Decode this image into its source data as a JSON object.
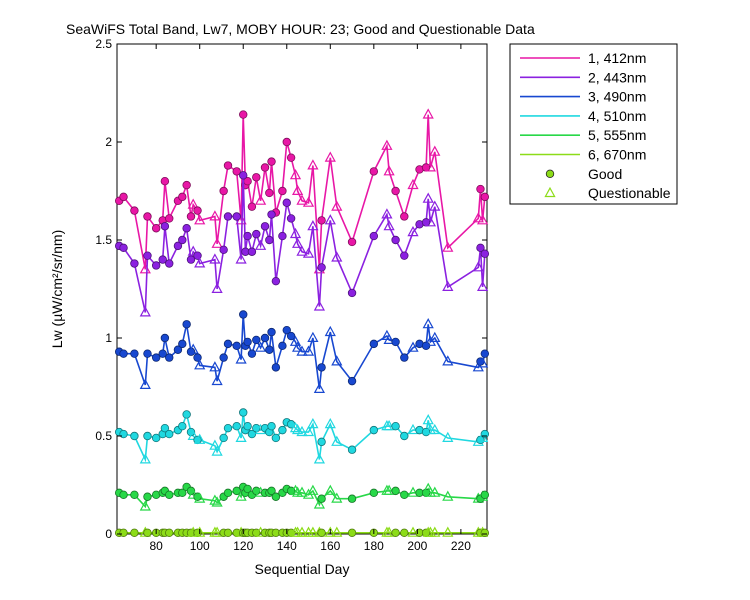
{
  "chart_data": {
    "type": "line",
    "title": "SeaWiFS Total Band,  Lw7, MOBY HOUR: 23;  Good and Questionable Data",
    "xlabel": "Sequential Day",
    "ylabel": "Lw (µW/cm²/sr/nm)",
    "xlim": [
      62,
      232
    ],
    "ylim": [
      0,
      2.5
    ],
    "xticks": [
      80,
      100,
      120,
      140,
      160,
      180,
      200,
      220
    ],
    "yticks": [
      0,
      0.5,
      1,
      1.5,
      2,
      2.5
    ],
    "ytick_labels": [
      "0",
      "0.5",
      "1",
      "1.5",
      "2",
      "2.5"
    ],
    "grid": false,
    "legend_position": "outside-top-right",
    "x": [
      63,
      65,
      70,
      75,
      76,
      80,
      83,
      84,
      86,
      90,
      92,
      94,
      96,
      97,
      99,
      100,
      107,
      108,
      111,
      113,
      117,
      119,
      120,
      121,
      122,
      124,
      126,
      128,
      130,
      132,
      133,
      135,
      138,
      140,
      142,
      144,
      145,
      147,
      150,
      152,
      155,
      156,
      160,
      163,
      170,
      180,
      186,
      187,
      190,
      194,
      198,
      201,
      204,
      205,
      206,
      208,
      214,
      228,
      229,
      230,
      231
    ],
    "series": [
      {
        "name": "1, 412nm",
        "color": "#e817a6",
        "values": [
          1.7,
          1.72,
          1.65,
          1.35,
          1.62,
          1.56,
          1.6,
          1.8,
          1.61,
          1.7,
          1.72,
          1.78,
          1.62,
          1.68,
          1.65,
          1.6,
          1.62,
          1.48,
          1.75,
          1.88,
          1.85,
          1.6,
          2.14,
          1.78,
          1.8,
          1.67,
          1.82,
          1.7,
          1.87,
          1.74,
          1.9,
          1.64,
          1.75,
          2.0,
          1.92,
          1.83,
          1.75,
          1.7,
          1.69,
          1.88,
          1.35,
          1.6,
          1.92,
          1.67,
          1.49,
          1.85,
          1.98,
          1.85,
          1.75,
          1.62,
          1.78,
          1.86,
          1.87,
          2.14,
          1.87,
          1.95,
          1.46,
          1.61,
          1.76,
          1.6,
          1.72
        ]
      },
      {
        "name": "2, 443nm",
        "color": "#8b21e0",
        "values": [
          1.47,
          1.46,
          1.38,
          1.13,
          1.42,
          1.37,
          1.4,
          1.57,
          1.38,
          1.47,
          1.5,
          1.56,
          1.4,
          1.44,
          1.42,
          1.38,
          1.4,
          1.25,
          1.45,
          1.62,
          1.62,
          1.4,
          1.83,
          1.44,
          1.52,
          1.44,
          1.53,
          1.47,
          1.57,
          1.5,
          1.63,
          1.29,
          1.52,
          1.69,
          1.61,
          1.53,
          1.48,
          1.44,
          1.43,
          1.57,
          1.16,
          1.36,
          1.6,
          1.41,
          1.23,
          1.52,
          1.63,
          1.57,
          1.5,
          1.42,
          1.54,
          1.58,
          1.59,
          1.71,
          1.59,
          1.67,
          1.26,
          1.36,
          1.46,
          1.26,
          1.43
        ]
      },
      {
        "name": "3, 490nm",
        "color": "#1848d0",
        "values": [
          0.93,
          0.92,
          0.92,
          0.76,
          0.92,
          0.9,
          0.92,
          1.0,
          0.9,
          0.94,
          0.97,
          1.07,
          0.93,
          0.94,
          0.9,
          0.86,
          0.85,
          0.78,
          0.9,
          0.97,
          0.96,
          0.89,
          1.12,
          0.96,
          0.98,
          0.92,
          0.99,
          0.95,
          1.0,
          0.94,
          1.03,
          0.85,
          0.96,
          1.04,
          1.01,
          0.98,
          0.95,
          0.93,
          0.93,
          1.0,
          0.74,
          0.85,
          1.03,
          0.88,
          0.78,
          0.97,
          1.01,
          0.99,
          0.98,
          0.9,
          0.95,
          0.97,
          0.96,
          1.07,
          0.98,
          1.0,
          0.88,
          0.85,
          0.88,
          0.87,
          0.92
        ]
      },
      {
        "name": "4, 510nm",
        "color": "#20d8e0",
        "values": [
          0.52,
          0.51,
          0.5,
          0.38,
          0.5,
          0.49,
          0.51,
          0.54,
          0.51,
          0.53,
          0.55,
          0.61,
          0.52,
          0.5,
          0.48,
          0.48,
          0.45,
          0.42,
          0.49,
          0.54,
          0.55,
          0.49,
          0.62,
          0.53,
          0.55,
          0.51,
          0.54,
          0.53,
          0.54,
          0.52,
          0.55,
          0.49,
          0.53,
          0.57,
          0.56,
          0.54,
          0.53,
          0.52,
          0.52,
          0.56,
          0.38,
          0.47,
          0.56,
          0.47,
          0.43,
          0.53,
          0.55,
          0.55,
          0.55,
          0.5,
          0.53,
          0.53,
          0.52,
          0.58,
          0.53,
          0.53,
          0.49,
          0.47,
          0.48,
          0.49,
          0.51
        ]
      },
      {
        "name": "5, 555nm",
        "color": "#28d848",
        "values": [
          0.21,
          0.2,
          0.2,
          0.14,
          0.19,
          0.2,
          0.21,
          0.22,
          0.2,
          0.21,
          0.21,
          0.24,
          0.22,
          0.2,
          0.19,
          0.18,
          0.17,
          0.16,
          0.19,
          0.21,
          0.22,
          0.19,
          0.24,
          0.21,
          0.23,
          0.2,
          0.22,
          0.21,
          0.21,
          0.21,
          0.22,
          0.19,
          0.21,
          0.23,
          0.22,
          0.22,
          0.21,
          0.21,
          0.2,
          0.22,
          0.15,
          0.18,
          0.22,
          0.18,
          0.18,
          0.21,
          0.22,
          0.22,
          0.22,
          0.2,
          0.21,
          0.21,
          0.21,
          0.23,
          0.21,
          0.21,
          0.19,
          0.18,
          0.18,
          0.19,
          0.2
        ]
      },
      {
        "name": "6, 670nm",
        "color": "#8cdc18",
        "values": [
          0.006,
          0.006,
          0.006,
          0.006,
          0.006,
          0.006,
          0.006,
          0.006,
          0.006,
          0.006,
          0.006,
          0.006,
          0.006,
          0.006,
          0.006,
          0.006,
          0.006,
          0.006,
          0.006,
          0.006,
          0.006,
          0.006,
          0.006,
          0.006,
          0.006,
          0.006,
          0.006,
          0.006,
          0.006,
          0.006,
          0.006,
          0.006,
          0.006,
          0.006,
          0.006,
          0.006,
          0.006,
          0.006,
          0.006,
          0.006,
          0.006,
          0.006,
          0.006,
          0.006,
          0.006,
          0.006,
          0.006,
          0.006,
          0.006,
          0.006,
          0.006,
          0.006,
          0.006,
          0.006,
          0.006,
          0.006,
          0.006,
          0.006,
          0.006,
          0.006,
          0.006
        ]
      }
    ],
    "quality": [
      "G",
      "G",
      "G",
      "Q",
      "G",
      "G",
      "G",
      "G",
      "G",
      "G",
      "G",
      "G",
      "G",
      "Q",
      "G",
      "Q",
      "Q",
      "Q",
      "G",
      "G",
      "G",
      "Q",
      "G",
      "G",
      "G",
      "G",
      "G",
      "Q",
      "G",
      "G",
      "G",
      "G",
      "G",
      "G",
      "G",
      "Q",
      "Q",
      "Q",
      "Q",
      "Q",
      "Q",
      "G",
      "Q",
      "Q",
      "G",
      "G",
      "Q",
      "Q",
      "G",
      "G",
      "Q",
      "G",
      "G",
      "Q",
      "Q",
      "Q",
      "Q",
      "Q",
      "G",
      "Q",
      "G"
    ],
    "marker_legend": [
      {
        "name": "Good",
        "marker": "circle"
      },
      {
        "name": "Questionable",
        "marker": "triangle"
      }
    ]
  }
}
